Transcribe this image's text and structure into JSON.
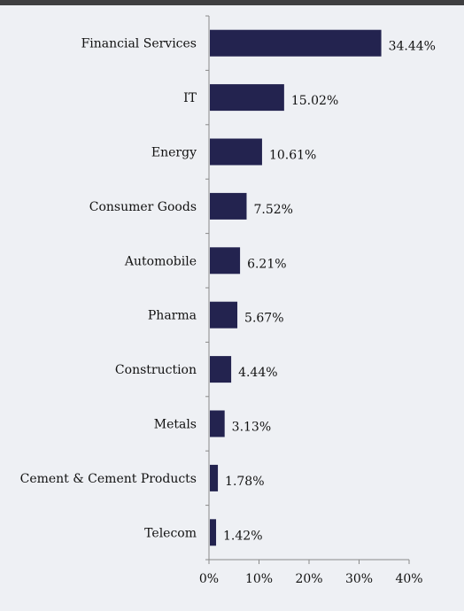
{
  "colors": {
    "bar": "#23234f",
    "background": "#eef0f4",
    "top_band": "#3f3f41",
    "axis": "#8a8a8a"
  },
  "chart_data": {
    "type": "bar",
    "orientation": "horizontal",
    "title": "",
    "xlabel": "",
    "ylabel": "",
    "xlim": [
      0,
      40
    ],
    "x_ticks": [
      "0%",
      "10%",
      "20%",
      "30%",
      "40%"
    ],
    "grid": false,
    "legend": "none",
    "categories": [
      "Financial Services",
      "IT",
      "Energy",
      "Consumer Goods",
      "Automobile",
      "Pharma",
      "Construction",
      "Metals",
      "Cement & Cement Products",
      "Telecom"
    ],
    "values": [
      34.44,
      15.02,
      10.61,
      7.52,
      6.21,
      5.67,
      4.44,
      3.13,
      1.78,
      1.42
    ],
    "data_labels": [
      "34.44%",
      "15.02%",
      "10.61%",
      "7.52%",
      "6.21%",
      "5.67%",
      "4.44%",
      "3.13%",
      "1.78%",
      "1.42%"
    ]
  }
}
